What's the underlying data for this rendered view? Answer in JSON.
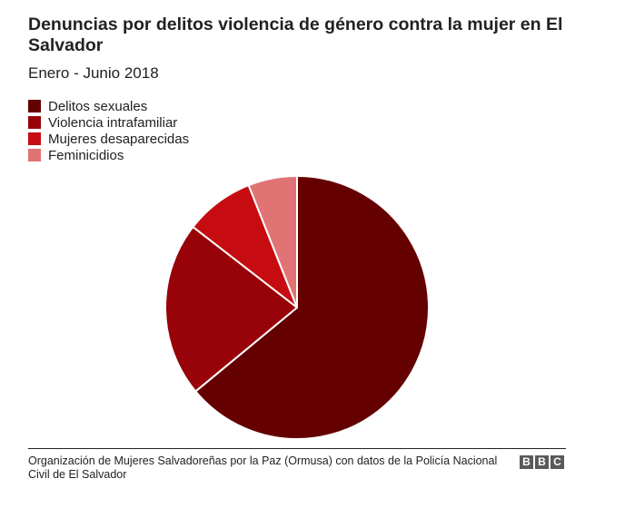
{
  "chart_data": {
    "type": "pie",
    "title": "Denuncias por delitos violencia de género contra la mujer en El Salvador",
    "subtitle": "Enero - Junio 2018",
    "legend_position": "top-left",
    "series": [
      {
        "name": "Delitos sexuales",
        "value": 64,
        "color": "#650000"
      },
      {
        "name": "Violencia intrafamiliar",
        "value": 21.5,
        "color": "#980209"
      },
      {
        "name": "Mujeres desaparecidas",
        "value": 8.5,
        "color": "#c60c11"
      },
      {
        "name": "Feminicidios",
        "value": 6,
        "color": "#e07474"
      }
    ]
  },
  "footer": {
    "source": "Organización de Mujeres Salvadoreñas por la Paz (Ormusa) con datos de la Policía Nacional Civil de El Salvador",
    "logo": [
      "B",
      "B",
      "C"
    ]
  }
}
